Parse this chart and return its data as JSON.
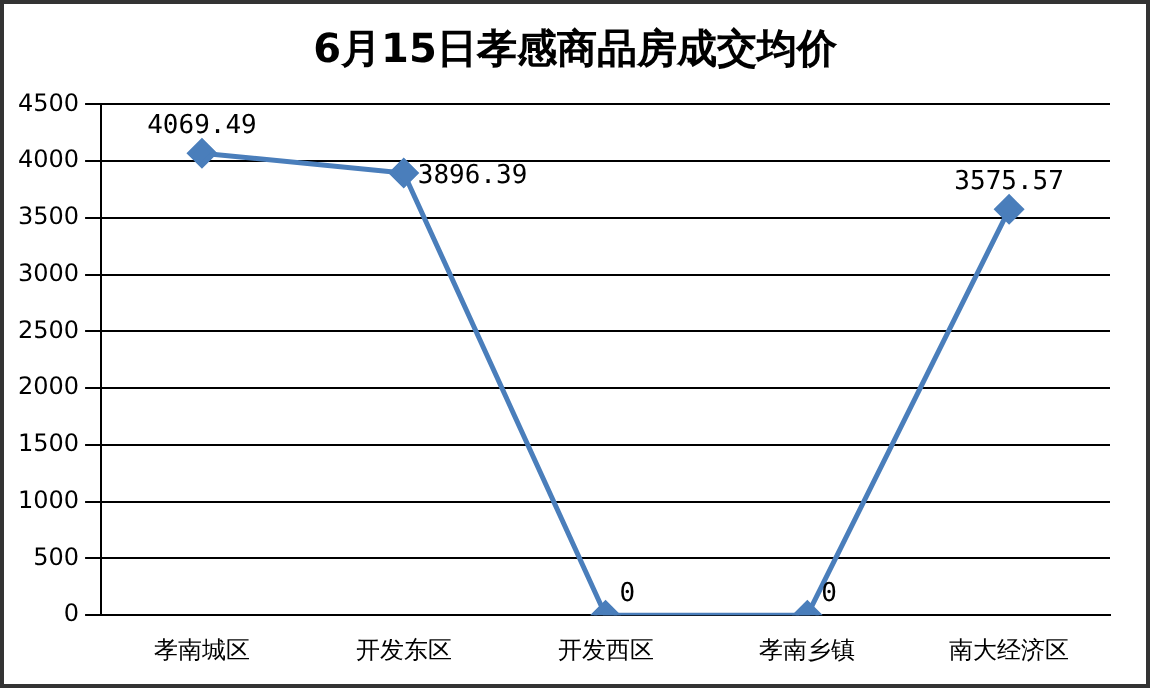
{
  "chart_data": {
    "type": "line",
    "title": "6月15日孝感商品房成交均价",
    "categories": [
      "孝南城区",
      "开发东区",
      "开发西区",
      "孝南乡镇",
      "南大经济区"
    ],
    "series": [
      {
        "color": "#4a7ebb",
        "values": [
          4069.49,
          3896.39,
          0,
          0,
          3575.57
        ]
      }
    ],
    "ylim": [
      0,
      4500
    ],
    "yticks": [
      0,
      500,
      1000,
      1500,
      2000,
      2500,
      3000,
      3500,
      4000,
      4500
    ],
    "grid": "y",
    "legend": false,
    "marker": "diamond",
    "line_style": "solid",
    "data_labels": true
  }
}
